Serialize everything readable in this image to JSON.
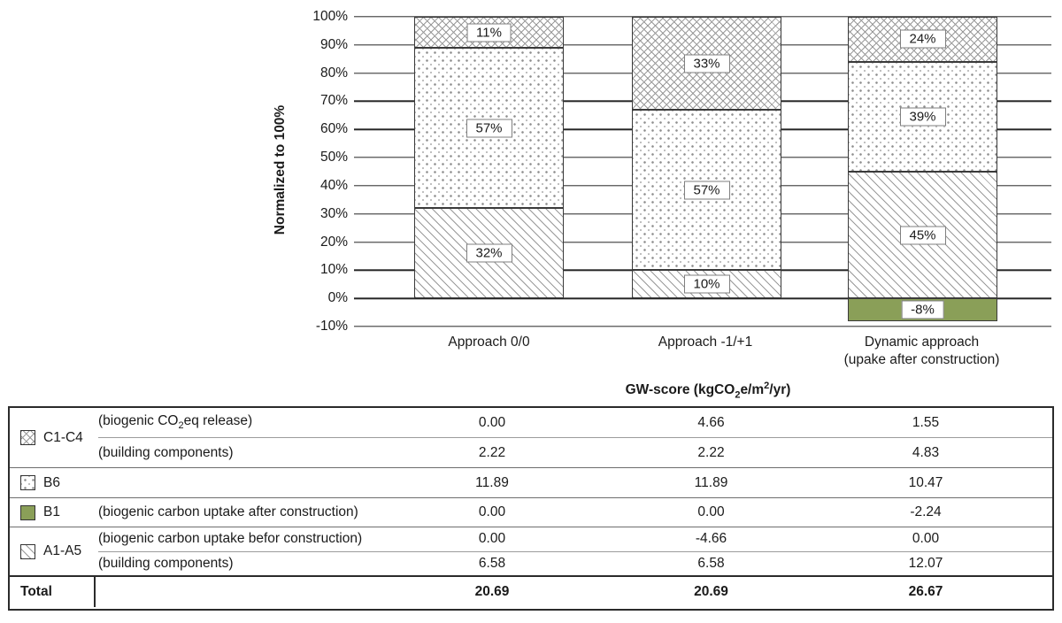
{
  "colors": {
    "b1_green": "#8A9F58",
    "pattern_line_gray": "#9a9a9a",
    "grid_line": "#262626"
  },
  "chart_data": {
    "type": "bar",
    "stacked": true,
    "ylabel": "Normalized to 100%",
    "ylim": [
      -10,
      100
    ],
    "ytick_step": 10,
    "ytick_suffix": "%",
    "grid": true,
    "categories": [
      [
        "Approach 0/0"
      ],
      [
        "Approach -1/+1"
      ],
      [
        "Dynamic approach",
        "(upake after construction)"
      ]
    ],
    "series": [
      {
        "name": "B1",
        "pattern": "green",
        "values": [
          0,
          0,
          -8
        ]
      },
      {
        "name": "A1-A5",
        "pattern": "diagonal",
        "values": [
          32,
          10,
          45
        ]
      },
      {
        "name": "B6",
        "pattern": "dots",
        "values": [
          57,
          57,
          39
        ]
      },
      {
        "name": "C1-C4",
        "pattern": "crosshatch",
        "values": [
          11,
          33,
          24
        ]
      }
    ],
    "segment_labels": {
      "bar1": [
        "32%",
        "57%",
        "11%"
      ],
      "bar2": [
        "10%",
        "57%",
        "33%"
      ],
      "bar3": [
        "-8%",
        "45%",
        "39%",
        "24%"
      ]
    }
  },
  "table": {
    "header": {
      "p1": "GW-score (kgCO",
      "sub": "2",
      "p2": "e/m",
      "sup": "2",
      "p3": "/yr)"
    },
    "rows": [
      {
        "code": "C1-C4",
        "pattern": "crosshatch",
        "sub": [
          {
            "desc": {
              "p1": "(biogenic CO",
              "sub": "2",
              "p2": "eq release)"
            },
            "values": [
              "0.00",
              "4.66",
              "1.55"
            ]
          },
          {
            "desc": {
              "p1": "(building components)"
            },
            "values": [
              "2.22",
              "2.22",
              "4.83"
            ]
          }
        ]
      },
      {
        "code": "B6",
        "pattern": "dots",
        "sub": [
          {
            "desc": {
              "p1": ""
            },
            "values": [
              "11.89",
              "11.89",
              "10.47"
            ]
          }
        ]
      },
      {
        "code": "B1",
        "pattern": "green",
        "sub": [
          {
            "desc": {
              "p1": "(biogenic carbon uptake after construction)"
            },
            "values": [
              "0.00",
              "0.00",
              "-2.24"
            ]
          }
        ]
      },
      {
        "code": "A1-A5",
        "pattern": "diagonal",
        "sub": [
          {
            "desc": {
              "p1": "(biogenic carbon uptake befor construction)"
            },
            "values": [
              "0.00",
              "-4.66",
              "0.00"
            ]
          },
          {
            "desc": {
              "p1": "(building components)"
            },
            "values": [
              "6.58",
              "6.58",
              "12.07"
            ]
          }
        ]
      }
    ],
    "total": {
      "label": "Total",
      "values": [
        "20.69",
        "20.69",
        "26.67"
      ]
    }
  }
}
